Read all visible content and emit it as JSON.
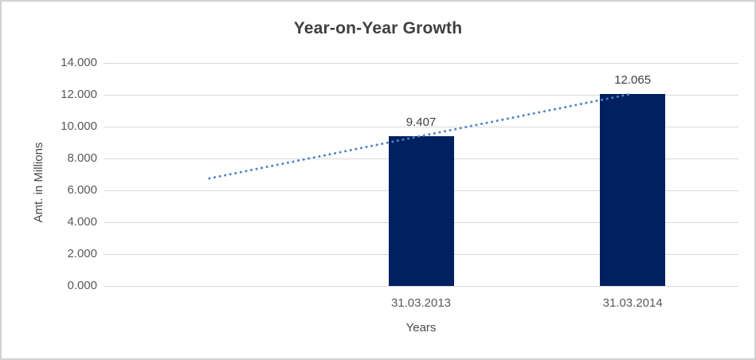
{
  "window": {
    "background_color": "#ffffff",
    "border_color": "#d2d2d2"
  },
  "chart_data": {
    "type": "bar",
    "title": "Year-on-Year Growth",
    "xlabel": "Years",
    "ylabel": "Amt. in Millions",
    "categories": [
      "",
      "31.03.2013",
      "31.03.2014"
    ],
    "values": [
      null,
      9.407,
      12.065
    ],
    "value_labels": [
      "",
      "9.407",
      "12.065"
    ],
    "yticks": [
      "0.000",
      "2.000",
      "4.000",
      "6.000",
      "8.000",
      "10.000",
      "12.000",
      "14.000"
    ],
    "ylim": [
      0,
      14
    ],
    "grid": true,
    "legend_position": "none",
    "bar_color": "#002060",
    "gridline_color": "#d9d9d9",
    "title_color": "#3f3f3f",
    "tick_label_color": "#595959",
    "data_label_color": "#404040",
    "trendline": {
      "type": "linear",
      "style": "dotted",
      "color": "#4e86c7",
      "start_category_index": 0,
      "end_category_index": 2,
      "start_value": 6.75,
      "end_value": 12.07
    }
  }
}
